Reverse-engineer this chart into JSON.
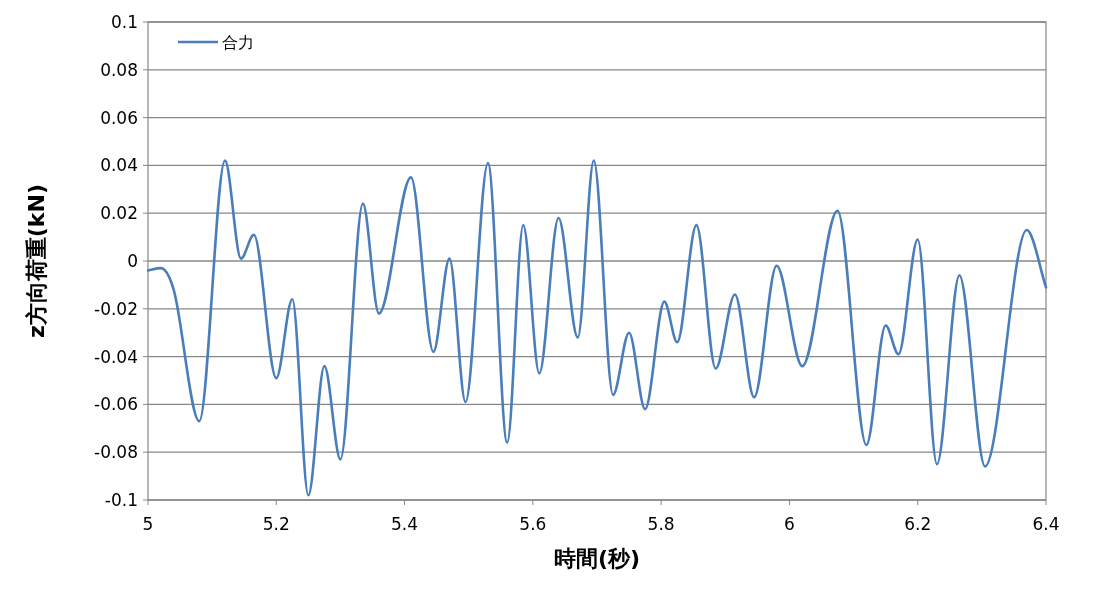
{
  "chart_data": {
    "type": "line",
    "xlabel": "時間(秒)",
    "ylabel": "z方向荷重(kN)",
    "xlim": [
      5,
      6.4
    ],
    "xticks": [
      5,
      5.2,
      5.4,
      5.6,
      5.8,
      6,
      6.2,
      6.4
    ],
    "ylim": [
      -0.1,
      0.1
    ],
    "yticks": [
      -0.1,
      -0.08,
      -0.06,
      -0.04,
      -0.02,
      0,
      0.02,
      0.04,
      0.06,
      0.08,
      0.1
    ],
    "grid": "y",
    "legend": "top left",
    "marker": "none",
    "line_style": "solid",
    "series": [
      {
        "name": "合力",
        "color": "#4a7ebb",
        "x": [
          5.0,
          5.02,
          5.04,
          5.08,
          5.12,
          5.145,
          5.165,
          5.2,
          5.225,
          5.25,
          5.275,
          5.3,
          5.335,
          5.36,
          5.41,
          5.445,
          5.47,
          5.495,
          5.53,
          5.56,
          5.585,
          5.61,
          5.64,
          5.67,
          5.695,
          5.725,
          5.75,
          5.775,
          5.805,
          5.825,
          5.855,
          5.885,
          5.915,
          5.945,
          5.98,
          6.02,
          6.075,
          6.12,
          6.15,
          6.17,
          6.2,
          6.23,
          6.265,
          6.305,
          6.37,
          6.4
        ],
        "values": [
          -0.004,
          -0.003,
          -0.012,
          -0.067,
          0.042,
          0.001,
          0.011,
          -0.049,
          -0.016,
          -0.098,
          -0.044,
          -0.083,
          0.024,
          -0.022,
          0.035,
          -0.038,
          0.001,
          -0.059,
          0.041,
          -0.076,
          0.015,
          -0.047,
          0.018,
          -0.032,
          0.042,
          -0.056,
          -0.03,
          -0.062,
          -0.017,
          -0.034,
          0.015,
          -0.045,
          -0.014,
          -0.057,
          -0.002,
          -0.044,
          0.021,
          -0.077,
          -0.027,
          -0.039,
          0.009,
          -0.085,
          -0.006,
          -0.086,
          0.013,
          -0.011
        ]
      }
    ]
  }
}
